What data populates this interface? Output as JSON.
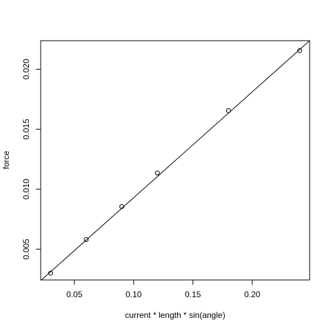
{
  "chart_data": {
    "type": "scatter",
    "title": "",
    "xlabel": "current * length * sin(angle)",
    "ylabel": "force",
    "xlim": [
      0.0216,
      0.2484
    ],
    "ylim": [
      0.00243,
      0.02238
    ],
    "x_ticks": [
      0.05,
      0.1,
      0.15,
      0.2
    ],
    "x_tick_labels": [
      "0.05",
      "0.10",
      "0.15",
      "0.20"
    ],
    "y_ticks": [
      0.005,
      0.01,
      0.015,
      0.02
    ],
    "y_tick_labels": [
      "0.005",
      "0.010",
      "0.015",
      "0.020"
    ],
    "grid": false,
    "legend": "none",
    "series": [
      {
        "marker": "open-circle",
        "points": [
          {
            "x": 0.03,
            "y": 0.003
          },
          {
            "x": 0.06,
            "y": 0.0058
          },
          {
            "x": 0.09,
            "y": 0.00855
          },
          {
            "x": 0.12,
            "y": 0.01135
          },
          {
            "x": 0.18,
            "y": 0.01655
          },
          {
            "x": 0.24,
            "y": 0.02155
          }
        ]
      }
    ],
    "fit_line": {
      "intercept": 0.00047,
      "slope": 0.0882
    }
  }
}
